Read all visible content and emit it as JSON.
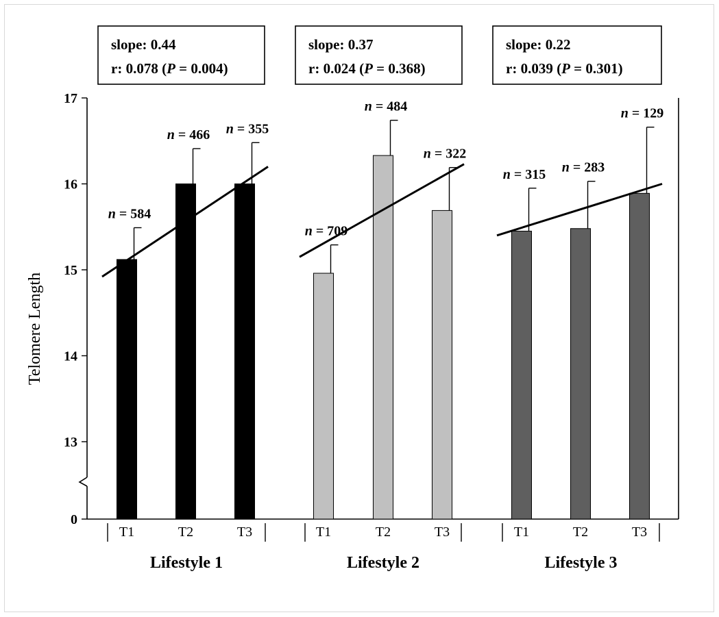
{
  "chart_data": {
    "type": "bar",
    "title": "",
    "xlabel": "",
    "ylabel": "Telomere Length",
    "y_ticks": [
      "17",
      "16",
      "15",
      "14",
      "13",
      "0"
    ],
    "ylim": [
      12.5,
      17
    ],
    "axis_break": true,
    "grid": false,
    "groups": [
      {
        "label": "Lifestyle 1",
        "color": "#000000",
        "slope_text": "slope: 0.44",
        "r_text": "r: 0.078 (",
        "p_letter": "P",
        "p_text": " = 0.004)",
        "bars": [
          {
            "category": "T1",
            "value": 15.12,
            "error": 0.37,
            "n_label": "n",
            "n_text": " = 584"
          },
          {
            "category": "T2",
            "value": 16.0,
            "error": 0.41,
            "n_label": "n",
            "n_text": " = 466"
          },
          {
            "category": "T3",
            "value": 16.0,
            "error": 0.48,
            "n_label": "n",
            "n_text": " = 355"
          }
        ],
        "trend": [
          14.92,
          16.2
        ]
      },
      {
        "label": "Lifestyle 2",
        "color": "#c0c0c0",
        "slope_text": "slope: 0.37",
        "r_text": "r: 0.024 (",
        "p_letter": "P",
        "p_text": " = 0.368)",
        "bars": [
          {
            "category": "T1",
            "value": 14.96,
            "error": 0.33,
            "n_label": "n",
            "n_text": " = 709"
          },
          {
            "category": "T2",
            "value": 16.33,
            "error": 0.41,
            "n_label": "n",
            "n_text": " = 484"
          },
          {
            "category": "T3",
            "value": 15.69,
            "error": 0.5,
            "n_label": "n",
            "n_text": " = 322"
          }
        ],
        "trend": [
          15.15,
          16.23
        ]
      },
      {
        "label": "Lifestyle 3",
        "color": "#5f5f5f",
        "slope_text": "slope: 0.22",
        "r_text": "r: 0.039 (",
        "p_letter": "P",
        "p_text": " = 0.301)",
        "bars": [
          {
            "category": "T1",
            "value": 15.45,
            "error": 0.5,
            "n_label": "n",
            "n_text": " = 315"
          },
          {
            "category": "T2",
            "value": 15.48,
            "error": 0.55,
            "n_label": "n",
            "n_text": " = 283"
          },
          {
            "category": "T3",
            "value": 15.89,
            "error": 0.77,
            "n_label": "n",
            "n_text": " = 129"
          }
        ],
        "trend": [
          15.4,
          16.0
        ]
      }
    ]
  }
}
